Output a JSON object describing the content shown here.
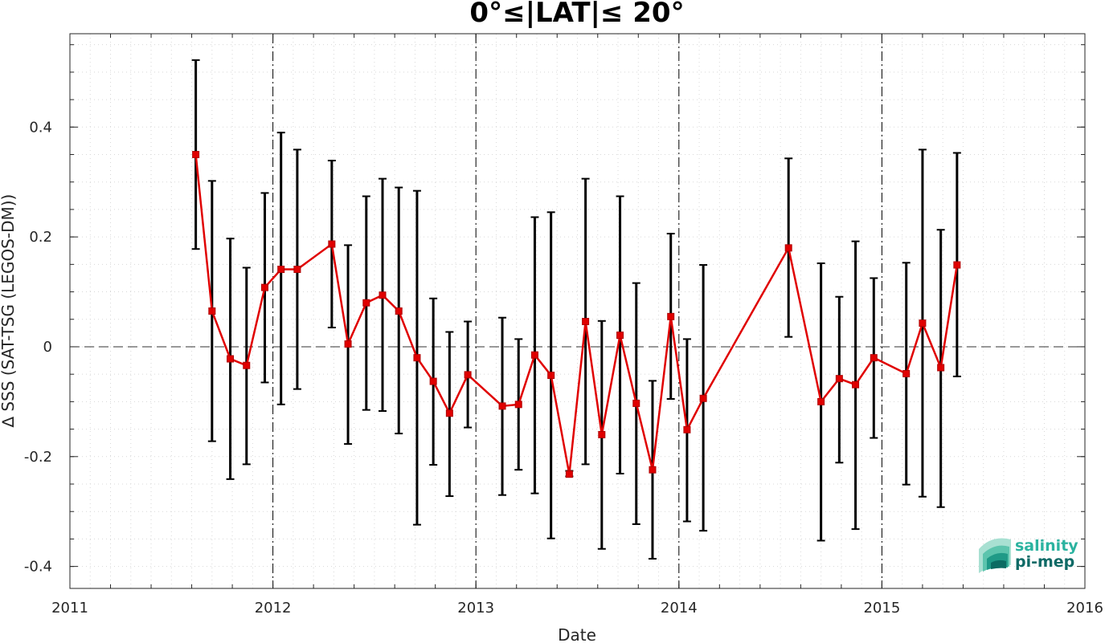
{
  "chart_data": {
    "type": "line",
    "title": "0°≤|LAT|≤ 20°",
    "xlabel": "Date",
    "ylabel": "∆ SSS (SAT-TSG (LEGOS-DM))",
    "xlim": [
      2011,
      2016
    ],
    "ylim": [
      -0.44,
      0.57
    ],
    "x_ticks": [
      2011,
      2012,
      2013,
      2014,
      2015,
      2016
    ],
    "x_tick_labels": [
      "2011",
      "2012",
      "2013",
      "2014",
      "2015",
      "2016"
    ],
    "y_ticks": [
      -0.4,
      -0.2,
      0,
      0.2,
      0.4
    ],
    "y_tick_labels": [
      "-0.4",
      "-0.2",
      "0",
      "0.2",
      "0.4"
    ],
    "grid": "dotted minor",
    "reference_line": 0,
    "series_color": "#e00000",
    "errorbar_color": "#000000",
    "series": [
      {
        "x": [
          2011.62,
          2011.7,
          2011.79,
          2011.87,
          2011.96,
          2012.04,
          2012.12,
          2012.29,
          2012.37,
          2012.46,
          2012.54,
          2012.62,
          2012.71,
          2012.79,
          2012.87,
          2012.96,
          2013.13,
          2013.21,
          2013.29,
          2013.37,
          2013.46,
          2013.54,
          2013.62,
          2013.71,
          2013.79,
          2013.87,
          2013.96,
          2014.04,
          2014.12,
          2014.54,
          2014.7,
          2014.79,
          2014.87,
          2014.96,
          2015.12,
          2015.2,
          2015.29,
          2015.37
        ],
        "y": [
          0.35,
          0.065,
          -0.022,
          -0.034,
          0.108,
          0.141,
          0.141,
          0.187,
          0.005,
          0.08,
          0.094,
          0.065,
          -0.02,
          -0.063,
          -0.121,
          -0.051,
          -0.108,
          -0.105,
          -0.015,
          -0.052,
          -0.232,
          0.046,
          -0.16,
          0.021,
          -0.103,
          -0.224,
          0.055,
          -0.151,
          -0.094,
          0.18,
          -0.1,
          -0.058,
          -0.069,
          -0.02,
          -0.049,
          0.043,
          -0.038,
          0.149
        ],
        "err_low": [
          0.178,
          -0.172,
          -0.241,
          -0.214,
          -0.065,
          -0.105,
          -0.077,
          0.035,
          -0.177,
          -0.115,
          -0.117,
          -0.158,
          -0.324,
          -0.215,
          -0.272,
          -0.147,
          -0.27,
          -0.224,
          -0.267,
          -0.349,
          -0.236,
          -0.214,
          -0.368,
          -0.231,
          -0.323,
          -0.386,
          -0.095,
          -0.318,
          -0.335,
          0.018,
          -0.353,
          -0.211,
          -0.332,
          -0.166,
          -0.251,
          -0.273,
          -0.292,
          -0.054
        ],
        "err_high": [
          0.522,
          0.302,
          0.197,
          0.144,
          0.28,
          0.39,
          0.359,
          0.339,
          0.185,
          0.274,
          0.306,
          0.29,
          0.284,
          0.088,
          0.027,
          0.046,
          0.053,
          0.014,
          0.236,
          0.245,
          -0.226,
          0.306,
          0.047,
          0.274,
          0.116,
          -0.062,
          0.206,
          0.014,
          0.149,
          0.343,
          0.152,
          0.091,
          0.192,
          0.125,
          0.153,
          0.359,
          0.213,
          0.353
        ]
      }
    ]
  },
  "logo": {
    "line1": "salinity",
    "line2": "pi-mep",
    "color1": "#2bb3a0",
    "color2": "#0e6a66"
  }
}
